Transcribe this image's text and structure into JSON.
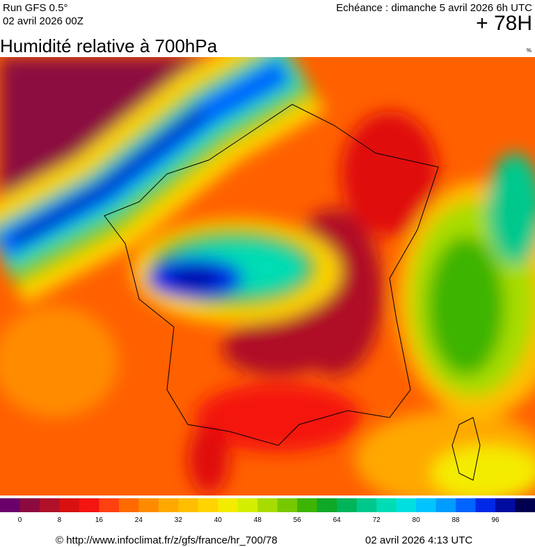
{
  "header": {
    "run": "Run GFS 0.5°",
    "run_date": "02 avril 2026 00Z",
    "echeance": "Echéance : dimanche 5 avril 2026 6h UTC",
    "lead": "+ 78H"
  },
  "title": "Humidité relative à 700hPa",
  "unit": "%",
  "colorbar": {
    "colors": [
      "#6a006a",
      "#8c0a40",
      "#b01028",
      "#d81010",
      "#f41410",
      "#ff4010",
      "#ff6a00",
      "#ff8c00",
      "#ffa800",
      "#ffbe00",
      "#ffd400",
      "#f4ec00",
      "#d4ee00",
      "#a8dc00",
      "#78c800",
      "#3cb400",
      "#10a828",
      "#00b45a",
      "#00c88c",
      "#00dcb4",
      "#00e0e0",
      "#00c4ff",
      "#009cff",
      "#0064ff",
      "#0028e6",
      "#000ca0",
      "#000050"
    ],
    "ticks": [
      0,
      8,
      16,
      24,
      32,
      40,
      48,
      56,
      64,
      72,
      80,
      88,
      96
    ]
  },
  "footer": {
    "source": "© http://www.infoclimat.fr/z/gfs/france/hr_700/78",
    "issued": "02 avril 2026  4:13 UTC"
  }
}
